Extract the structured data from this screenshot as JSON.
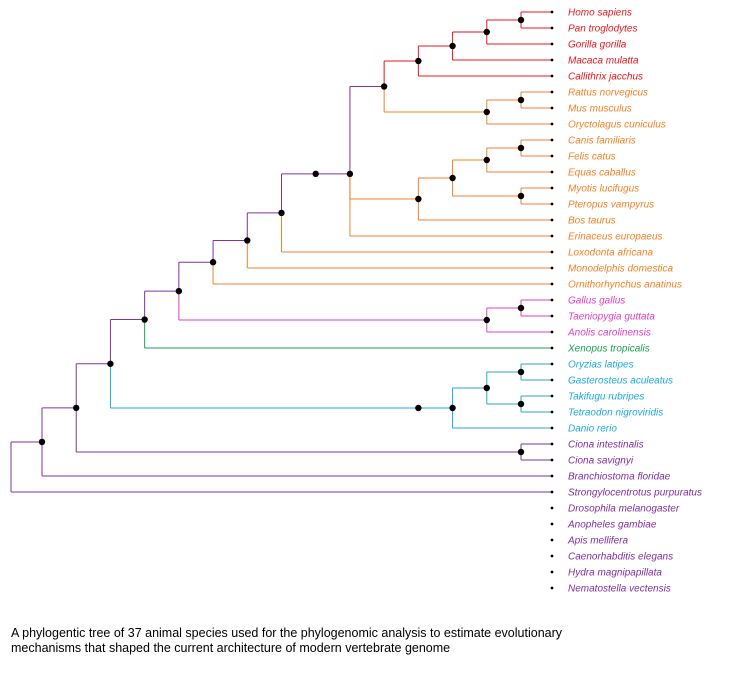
{
  "clades": {
    "primates": "#e8161e",
    "mammals": "#f08228",
    "sauropsids": "#e040c0",
    "amphibians": "#1aa050",
    "fishes": "#1eaadc",
    "invertebrates": "#8030a0"
  },
  "taxa": [
    {
      "id": "homo",
      "name": "Homo sapiens",
      "clade": "primates"
    },
    {
      "id": "pan",
      "name": "Pan troglodytes",
      "clade": "primates"
    },
    {
      "id": "gorilla",
      "name": "Gorilla gorilla",
      "clade": "primates"
    },
    {
      "id": "macaca",
      "name": "Macaca mulatta",
      "clade": "primates"
    },
    {
      "id": "callithrix",
      "name": "Callithrix jacchus",
      "clade": "primates"
    },
    {
      "id": "rattus",
      "name": "Rattus norvegicus",
      "clade": "mammals"
    },
    {
      "id": "mus",
      "name": "Mus musculus",
      "clade": "mammals"
    },
    {
      "id": "oryctolagus",
      "name": "Oryctolagus cuniculus",
      "clade": "mammals"
    },
    {
      "id": "canis",
      "name": "Canis familiaris",
      "clade": "mammals"
    },
    {
      "id": "felis",
      "name": "Felis catus",
      "clade": "mammals"
    },
    {
      "id": "equas",
      "name": "Equas caballus",
      "clade": "mammals"
    },
    {
      "id": "myotis",
      "name": "Myotis lucifugus",
      "clade": "mammals"
    },
    {
      "id": "pteropus",
      "name": "Pteropus vampyrus",
      "clade": "mammals"
    },
    {
      "id": "bos",
      "name": "Bos taurus",
      "clade": "mammals"
    },
    {
      "id": "erinaceus",
      "name": "Erinaceus europaeus",
      "clade": "mammals"
    },
    {
      "id": "loxodonta",
      "name": "Loxodonta africana",
      "clade": "mammals"
    },
    {
      "id": "monodelphis",
      "name": "Monodelphis domestica",
      "clade": "mammals"
    },
    {
      "id": "ornithorhynchus",
      "name": "Ornithorhynchus anatinus",
      "clade": "mammals"
    },
    {
      "id": "gallus",
      "name": "Gallus gallus",
      "clade": "sauropsids"
    },
    {
      "id": "taeniopygia",
      "name": "Taeniopygia guttata",
      "clade": "sauropsids"
    },
    {
      "id": "anolis",
      "name": "Anolis carolinensis",
      "clade": "sauropsids"
    },
    {
      "id": "xenopus",
      "name": "Xenopus tropicalis",
      "clade": "amphibians"
    },
    {
      "id": "oryzias",
      "name": "Oryzias latipes",
      "clade": "fishes"
    },
    {
      "id": "gasterosteus",
      "name": "Gasterosteus aculeatus",
      "clade": "fishes"
    },
    {
      "id": "takifugu",
      "name": "Takifugu rubripes",
      "clade": "fishes"
    },
    {
      "id": "tetraodon",
      "name": "Tetraodon nigroviridis",
      "clade": "fishes"
    },
    {
      "id": "danio",
      "name": "Danio rerio",
      "clade": "fishes"
    },
    {
      "id": "ciona_int",
      "name": "Ciona intestinalis",
      "clade": "invertebrates"
    },
    {
      "id": "ciona_sav",
      "name": "Ciona savignyi",
      "clade": "invertebrates"
    },
    {
      "id": "branchiostoma",
      "name": "Branchiostoma floridae",
      "clade": "invertebrates"
    },
    {
      "id": "strongylocentrotus",
      "name": "Strongylocentrotus purpuratus",
      "clade": "invertebrates"
    },
    {
      "id": "drosophila",
      "name": "Drosophila melanogaster",
      "clade": "invertebrates"
    },
    {
      "id": "anopheles",
      "name": "Anopheles gambiae",
      "clade": "invertebrates"
    },
    {
      "id": "apis",
      "name": "Apis mellifera",
      "clade": "invertebrates"
    },
    {
      "id": "caenorhabditis",
      "name": "Caenorhabditis elegans",
      "clade": "invertebrates"
    },
    {
      "id": "hydra",
      "name": "Hydra magnipapillata",
      "clade": "invertebrates"
    },
    {
      "id": "nematostella",
      "name": "Nematostella vectensis",
      "clade": "invertebrates"
    }
  ],
  "newick": "((((((((((((((((homo,pan),gorilla),macaca),callithrix),((rattus,mus),oryctolagus)),((((canis,felis),equas),(myotis,pteropus)),bos),erinaceus)),loxodonta),monodelphis),ornithorhynchus),((gallus,taeniopygia),anolis)),xenopus),((((oryzias,gasterosteus),(takifugu,tetraodon)),danio))),(ciona_int,ciona_sav)),branchiostoma),strongylocentrotus),(((drosophila,anopheles),apis),caenorhabditis)),(hydra,nematostella))",
  "caption": {
    "line1": "A phylogentic tree of 37 animal species used for the phylogenomic analysis to estimate evolutionary",
    "line2": "mechanisms that shaped the current architecture of modern vertebrate genome"
  }
}
